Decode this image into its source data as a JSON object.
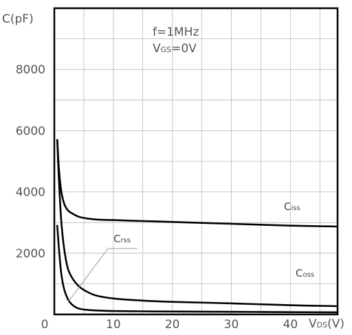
{
  "chart_data": {
    "type": "line",
    "ylabel": "C(pF)",
    "xlabel": {
      "main": "V",
      "sub": "DS",
      "unit": "(V)"
    },
    "conditions": [
      "f=1MHz",
      {
        "main": "V",
        "sub": "GS",
        "rest": "=0V"
      }
    ],
    "xlim": [
      0,
      48
    ],
    "ylim": [
      0,
      10000
    ],
    "xticks": [
      0,
      10,
      20,
      30,
      40
    ],
    "yticks": [
      2000,
      4000,
      6000,
      8000
    ],
    "x_tick_labels": [
      "0",
      "10",
      "20",
      "30",
      "40"
    ],
    "y_tick_labels": [
      "2000",
      "4000",
      "6000",
      "8000"
    ],
    "grid": true,
    "series": [
      {
        "name": {
          "main": "C",
          "sub": "iss"
        },
        "x": [
          0.5,
          0.8,
          1.2,
          1.7,
          2.3,
          3,
          4,
          5,
          7,
          10,
          15,
          20,
          30,
          40,
          48
        ],
        "y": [
          5700,
          4700,
          4000,
          3600,
          3400,
          3300,
          3200,
          3150,
          3100,
          3080,
          3050,
          3020,
          2960,
          2900,
          2870
        ]
      },
      {
        "name": {
          "main": "C",
          "sub": "oss"
        },
        "x": [
          0.5,
          0.8,
          1.2,
          1.7,
          2.3,
          3,
          4,
          5,
          7,
          10,
          15,
          20,
          30,
          40,
          48
        ],
        "y": [
          5700,
          4300,
          3000,
          2100,
          1500,
          1200,
          950,
          800,
          620,
          520,
          450,
          410,
          360,
          300,
          270
        ]
      },
      {
        "name": {
          "main": "C",
          "sub": "rss"
        },
        "x": [
          0.5,
          0.8,
          1.2,
          1.7,
          2.3,
          3,
          4,
          5,
          7,
          10,
          15,
          20,
          30,
          40,
          48
        ],
        "y": [
          2900,
          2100,
          1300,
          800,
          500,
          320,
          200,
          160,
          130,
          110,
          100,
          95,
          85,
          75,
          70
        ]
      }
    ]
  }
}
